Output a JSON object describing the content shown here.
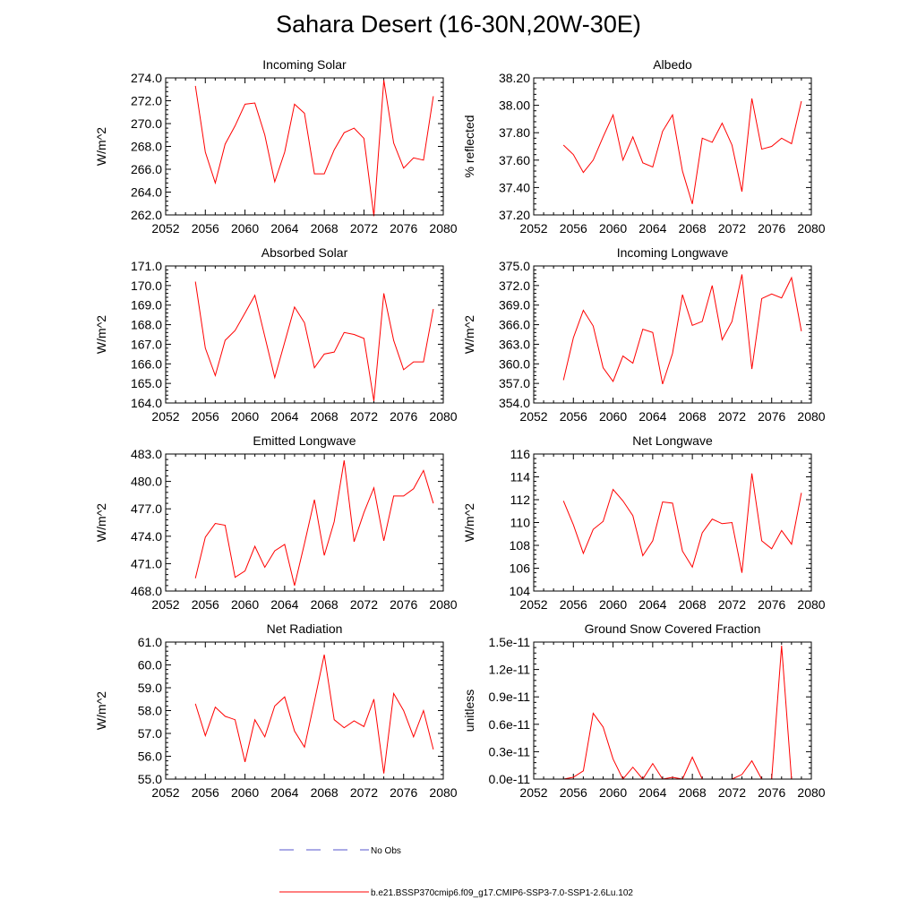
{
  "page": {
    "title": "Sahara Desert (16-30N,20W-30E)"
  },
  "legend": {
    "no_obs_label": "No Obs",
    "no_obs_color": "#5555cc",
    "series_label": "b.e21.BSSP370cmip6.f09_g17.CMIP6-SSP3-7.0-SSP1-2.6Lu.102",
    "series_color": "#ff0000"
  },
  "chart_data": [
    {
      "type": "line",
      "title": "Incoming Solar",
      "ylabel": "W/m^2",
      "xlim": [
        2052,
        2080
      ],
      "ylim": [
        262.0,
        274.0
      ],
      "yticks": [
        "262.0",
        "264.0",
        "266.0",
        "268.0",
        "270.0",
        "272.0",
        "274.0"
      ],
      "xticks": [
        "2052",
        "2056",
        "2060",
        "2064",
        "2068",
        "2072",
        "2076",
        "2080"
      ],
      "x": [
        2055,
        2056,
        2057,
        2058,
        2059,
        2060,
        2061,
        2062,
        2063,
        2064,
        2065,
        2066,
        2067,
        2068,
        2069,
        2070,
        2071,
        2072,
        2073,
        2074,
        2075,
        2076,
        2077,
        2078,
        2079
      ],
      "series": [
        {
          "values": [
            273.3,
            267.5,
            264.8,
            268.2,
            269.8,
            271.7,
            271.8,
            269.0,
            264.9,
            267.5,
            271.7,
            270.9,
            265.6,
            265.6,
            267.7,
            269.2,
            269.6,
            268.7,
            261.9,
            273.8,
            268.3,
            266.1,
            267.0,
            266.8,
            272.4
          ]
        }
      ]
    },
    {
      "type": "line",
      "title": "Albedo",
      "ylabel": "% reflected",
      "xlim": [
        2052,
        2080
      ],
      "ylim": [
        37.2,
        38.2
      ],
      "yticks": [
        "37.20",
        "37.40",
        "37.60",
        "37.80",
        "38.00",
        "38.20"
      ],
      "xticks": [
        "2052",
        "2056",
        "2060",
        "2064",
        "2068",
        "2072",
        "2076",
        "2080"
      ],
      "x": [
        2055,
        2056,
        2057,
        2058,
        2059,
        2060,
        2061,
        2062,
        2063,
        2064,
        2065,
        2066,
        2067,
        2068,
        2069,
        2070,
        2071,
        2072,
        2073,
        2074,
        2075,
        2076,
        2077,
        2078,
        2079
      ],
      "series": [
        {
          "values": [
            37.71,
            37.64,
            37.51,
            37.6,
            37.77,
            37.93,
            37.6,
            37.77,
            37.58,
            37.55,
            37.81,
            37.93,
            37.52,
            37.28,
            37.76,
            37.73,
            37.87,
            37.71,
            37.37,
            38.05,
            37.68,
            37.7,
            37.76,
            37.72,
            38.03
          ]
        }
      ]
    },
    {
      "type": "line",
      "title": "Absorbed Solar",
      "ylabel": "W/m^2",
      "xlim": [
        2052,
        2080
      ],
      "ylim": [
        164.0,
        171.0
      ],
      "yticks": [
        "164.0",
        "165.0",
        "166.0",
        "167.0",
        "168.0",
        "169.0",
        "170.0",
        "171.0"
      ],
      "xticks": [
        "2052",
        "2056",
        "2060",
        "2064",
        "2068",
        "2072",
        "2076",
        "2080"
      ],
      "x": [
        2055,
        2056,
        2057,
        2058,
        2059,
        2060,
        2061,
        2062,
        2063,
        2064,
        2065,
        2066,
        2067,
        2068,
        2069,
        2070,
        2071,
        2072,
        2073,
        2074,
        2075,
        2076,
        2077,
        2078,
        2079
      ],
      "series": [
        {
          "values": [
            170.2,
            166.8,
            165.4,
            167.2,
            167.7,
            168.6,
            169.5,
            167.4,
            165.3,
            167.1,
            168.9,
            168.1,
            165.8,
            166.5,
            166.6,
            167.6,
            167.5,
            167.3,
            164.1,
            169.6,
            167.2,
            165.7,
            166.1,
            166.1,
            168.8
          ]
        }
      ]
    },
    {
      "type": "line",
      "title": "Incoming Longwave",
      "ylabel": "W/m^2",
      "xlim": [
        2052,
        2080
      ],
      "ylim": [
        354.0,
        375.0
      ],
      "yticks": [
        "354.0",
        "357.0",
        "360.0",
        "363.0",
        "366.0",
        "369.0",
        "372.0",
        "375.0"
      ],
      "xticks": [
        "2052",
        "2056",
        "2060",
        "2064",
        "2068",
        "2072",
        "2076",
        "2080"
      ],
      "x": [
        2055,
        2056,
        2057,
        2058,
        2059,
        2060,
        2061,
        2062,
        2063,
        2064,
        2065,
        2066,
        2067,
        2068,
        2069,
        2070,
        2071,
        2072,
        2073,
        2074,
        2075,
        2076,
        2077,
        2078,
        2079
      ],
      "series": [
        {
          "values": [
            357.5,
            364.0,
            368.2,
            365.8,
            359.4,
            357.3,
            361.2,
            360.1,
            365.3,
            364.8,
            356.9,
            361.6,
            370.6,
            365.9,
            366.5,
            372.0,
            363.7,
            366.5,
            373.7,
            359.2,
            370.0,
            370.7,
            370.1,
            373.2,
            365.0
          ]
        }
      ]
    },
    {
      "type": "line",
      "title": "Emitted Longwave",
      "ylabel": "W/m^2",
      "xlim": [
        2052,
        2080
      ],
      "ylim": [
        468.0,
        483.0
      ],
      "yticks": [
        "468.0",
        "471.0",
        "474.0",
        "477.0",
        "480.0",
        "483.0"
      ],
      "xticks": [
        "2052",
        "2056",
        "2060",
        "2064",
        "2068",
        "2072",
        "2076",
        "2080"
      ],
      "x": [
        2055,
        2056,
        2057,
        2058,
        2059,
        2060,
        2061,
        2062,
        2063,
        2064,
        2065,
        2066,
        2067,
        2068,
        2069,
        2070,
        2071,
        2072,
        2073,
        2074,
        2075,
        2076,
        2077,
        2078,
        2079
      ],
      "series": [
        {
          "values": [
            469.4,
            473.9,
            475.4,
            475.2,
            469.5,
            470.2,
            472.9,
            470.6,
            472.4,
            473.1,
            468.6,
            473.2,
            478.0,
            471.9,
            475.6,
            482.3,
            473.4,
            476.6,
            479.3,
            473.5,
            478.4,
            478.4,
            479.2,
            481.2,
            477.6
          ]
        }
      ]
    },
    {
      "type": "line",
      "title": "Net Longwave",
      "ylabel": "W/m^2",
      "xlim": [
        2052,
        2080
      ],
      "ylim": [
        104,
        116
      ],
      "yticks": [
        "104",
        "106",
        "108",
        "110",
        "112",
        "114",
        "116"
      ],
      "xticks": [
        "2052",
        "2056",
        "2060",
        "2064",
        "2068",
        "2072",
        "2076",
        "2080"
      ],
      "x": [
        2055,
        2056,
        2057,
        2058,
        2059,
        2060,
        2061,
        2062,
        2063,
        2064,
        2065,
        2066,
        2067,
        2068,
        2069,
        2070,
        2071,
        2072,
        2073,
        2074,
        2075,
        2076,
        2077,
        2078,
        2079
      ],
      "series": [
        {
          "values": [
            111.9,
            109.8,
            107.3,
            109.4,
            110.1,
            112.9,
            111.9,
            110.6,
            107.1,
            108.4,
            111.8,
            111.7,
            107.5,
            106.1,
            109.1,
            110.3,
            109.9,
            110.0,
            105.6,
            114.3,
            108.4,
            107.7,
            109.3,
            108.1,
            112.6
          ]
        }
      ]
    },
    {
      "type": "line",
      "title": "Net Radiation",
      "ylabel": "W/m^2",
      "xlim": [
        2052,
        2080
      ],
      "ylim": [
        55.0,
        61.0
      ],
      "yticks": [
        "55.0",
        "56.0",
        "57.0",
        "58.0",
        "59.0",
        "60.0",
        "61.0"
      ],
      "xticks": [
        "2052",
        "2056",
        "2060",
        "2064",
        "2068",
        "2072",
        "2076",
        "2080"
      ],
      "x": [
        2055,
        2056,
        2057,
        2058,
        2059,
        2060,
        2061,
        2062,
        2063,
        2064,
        2065,
        2066,
        2067,
        2068,
        2069,
        2070,
        2071,
        2072,
        2073,
        2074,
        2075,
        2076,
        2077,
        2078,
        2079
      ],
      "series": [
        {
          "values": [
            58.3,
            56.9,
            58.15,
            57.75,
            57.6,
            55.75,
            57.6,
            56.85,
            58.2,
            58.6,
            57.1,
            56.4,
            58.4,
            60.45,
            57.6,
            57.25,
            57.55,
            57.3,
            58.5,
            55.25,
            58.75,
            58.0,
            56.85,
            58.0,
            56.3
          ]
        }
      ]
    },
    {
      "type": "line",
      "title": "Ground Snow Covered Fraction",
      "ylabel": "unitless",
      "xlim": [
        2052,
        2080
      ],
      "ylim": [
        0.0,
        1.5e-11
      ],
      "yticks": [
        "0.0e-11",
        "0.3e-11",
        "0.6e-11",
        "0.9e-11",
        "1.2e-11",
        "1.5e-11"
      ],
      "ytick_values": [
        0.0,
        3e-12,
        6e-12,
        9e-12,
        1.2e-11,
        1.5e-11
      ],
      "xticks": [
        "2052",
        "2056",
        "2060",
        "2064",
        "2068",
        "2072",
        "2076",
        "2080"
      ],
      "x": [
        2055,
        2056,
        2057,
        2058,
        2059,
        2060,
        2061,
        2062,
        2063,
        2064,
        2065,
        2066,
        2067,
        2068,
        2069,
        2070,
        2071,
        2072,
        2073,
        2074,
        2075,
        2076,
        2077,
        2078,
        2079
      ],
      "series": [
        {
          "values": [
            0.0,
            2e-13,
            9e-13,
            7.2e-12,
            5.7e-12,
            2.2e-12,
            0.0,
            1.3e-12,
            0.0,
            1.7e-12,
            0.0,
            2e-13,
            0.0,
            2.4e-12,
            0.0,
            0.0,
            0.0,
            0.0,
            5e-13,
            2e-12,
            0.0,
            0.0,
            1.46e-11,
            0.0,
            0.0
          ]
        }
      ]
    }
  ]
}
